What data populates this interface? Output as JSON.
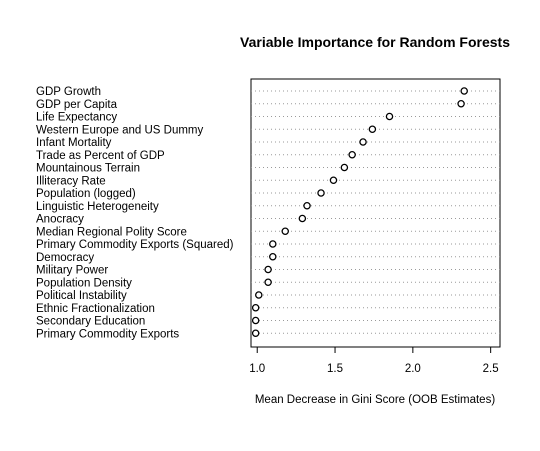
{
  "chart_data": {
    "type": "scatter",
    "title": "Variable Importance for Random Forests",
    "xlabel": "Mean Decrease in Gini Score (OOB Estimates)",
    "ylabel": "",
    "xlim": [
      0.96,
      2.56
    ],
    "xticks": [
      "1.0",
      "1.5",
      "2.0",
      "2.5"
    ],
    "grid": "dotted horizontal guide per variable",
    "marker": "open circle",
    "colors": {
      "axis": "#000000",
      "guide": "#9a9a9a",
      "marker": "#000000",
      "background": "#ffffff"
    },
    "categories": [
      "GDP Growth",
      "GDP per Capita",
      "Life Expectancy",
      "Western Europe and US Dummy",
      "Infant Mortality",
      "Trade as Percent of GDP",
      "Mountainous Terrain",
      "Illiteracy Rate",
      "Population (logged)",
      "Linguistic Heterogeneity",
      "Anocracy",
      "Median Regional Polity Score",
      "Primary Commodity Exports (Squared)",
      "Democracy",
      "Military Power",
      "Population Density",
      "Political Instability",
      "Ethnic Fractionalization",
      "Secondary Education",
      "Primary Commodity Exports"
    ],
    "values": [
      2.33,
      2.31,
      1.85,
      1.74,
      1.68,
      1.61,
      1.56,
      1.49,
      1.41,
      1.32,
      1.29,
      1.18,
      1.1,
      1.1,
      1.07,
      1.07,
      1.01,
      0.99,
      0.99,
      0.99
    ]
  }
}
